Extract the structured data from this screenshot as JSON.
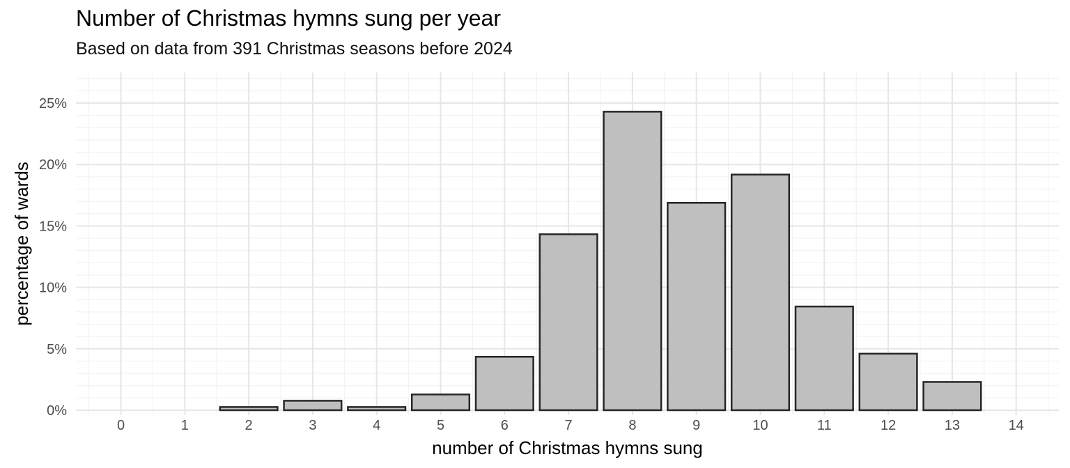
{
  "chart_data": {
    "type": "bar",
    "title": "Number of Christmas hymns sung per year",
    "subtitle": "Based on data from 391 Christmas seasons before 2024",
    "xlabel": "number of Christmas hymns sung",
    "ylabel": "percentage of wards",
    "categories": [
      "0",
      "1",
      "2",
      "3",
      "4",
      "5",
      "6",
      "7",
      "8",
      "9",
      "10",
      "11",
      "12",
      "13",
      "14"
    ],
    "values": [
      0,
      0,
      0.26,
      0.77,
      0.26,
      1.28,
      4.35,
      14.32,
      24.3,
      16.88,
      19.18,
      8.44,
      4.6,
      2.3,
      0
    ],
    "ylim": [
      0,
      27
    ],
    "yticks": [
      0,
      5,
      10,
      15,
      20,
      25
    ],
    "ytick_labels": [
      "0%",
      "5%",
      "10%",
      "15%",
      "20%",
      "25%"
    ],
    "grid": true,
    "legend": "none",
    "colors": {
      "bar_fill": "#bfbfbf",
      "bar_stroke": "#262626",
      "grid_major": "#e6e6e6",
      "grid_minor": "#f0f0f0"
    }
  }
}
